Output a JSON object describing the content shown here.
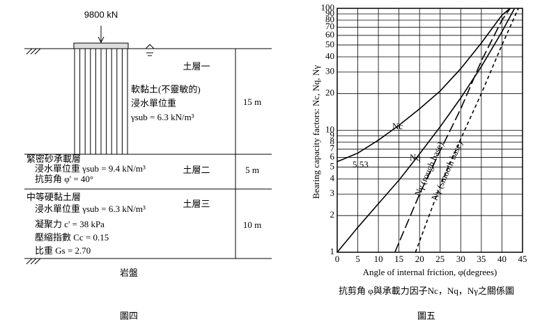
{
  "diagram": {
    "load": "9800 kN",
    "layers": [
      {
        "name": "土層一",
        "thickness": "15 m",
        "lines": [
          "軟黏土(不靈敏的)",
          "浸水單位重",
          "γsub = 6.3 kN/m³"
        ]
      },
      {
        "name": "土層二",
        "thickness": "5 m",
        "lines": [
          "緊密砂承載層",
          "浸水單位重 γsub = 9.4 kN/m³",
          "抗剪角 φ' = 40°"
        ]
      },
      {
        "name": "土層三",
        "thickness": "10 m",
        "lines": [
          "中等硬黏土層",
          "浸水單位重 γsub = 6.3 kN/m³",
          "凝聚力 c' = 38 kPa",
          "壓縮指數 Cc = 0.15",
          "比重 Gs = 2.70"
        ]
      }
    ],
    "bedrock": "岩盤",
    "caption": "圖四"
  },
  "chart_data": {
    "type": "line",
    "y_label": "Bearing capacity factors: Nc, Nq, Nγ",
    "x_label": "Angle of internal friction, φ(degrees)",
    "caption": "抗剪角 φ與承載力因子Nc，Nq，Nγ之關係圖",
    "figure_label": "圖五",
    "annotation": "5.53",
    "xlim": [
      0,
      45
    ],
    "xticks": [
      0,
      5,
      10,
      15,
      20,
      25,
      30,
      35,
      40,
      45
    ],
    "ylim": [
      1,
      100
    ],
    "yticks": [
      1,
      2,
      3,
      4,
      5,
      6,
      7,
      8,
      9,
      10,
      20,
      30,
      40,
      50,
      60,
      70,
      80,
      90,
      100
    ],
    "log_y": true,
    "grid": true,
    "series": [
      {
        "name": "Nc",
        "color": "#000000",
        "dash": "none",
        "x": [
          0,
          5,
          10,
          15,
          20,
          25,
          30,
          35,
          40,
          42
        ],
        "values": [
          5.53,
          6.5,
          8.3,
          11,
          15,
          21,
          32,
          52,
          88,
          100
        ]
      },
      {
        "name": "Nq",
        "color": "#000000",
        "dash": "none",
        "x": [
          0,
          5,
          10,
          15,
          20,
          25,
          30,
          35,
          40,
          43
        ],
        "values": [
          1,
          1.6,
          2.5,
          3.9,
          6.4,
          10.7,
          18.4,
          33.3,
          64.2,
          99
        ]
      },
      {
        "name": "Nγ (rough base)",
        "color": "#000000",
        "dash": "14 5",
        "x": [
          14,
          20,
          25,
          30,
          35,
          40,
          42
        ],
        "values": [
          1,
          3,
          6.8,
          15,
          37,
          80,
          100
        ]
      },
      {
        "name": "Nγ (smooth base)",
        "color": "#000000",
        "dash": "5 4",
        "x": [
          19,
          25,
          30,
          35,
          40,
          44
        ],
        "values": [
          1,
          3.5,
          8.5,
          20,
          50,
          100
        ]
      }
    ]
  }
}
